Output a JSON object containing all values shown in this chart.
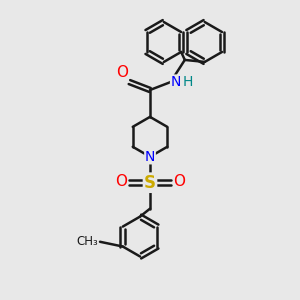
{
  "background_color": "#e8e8e8",
  "bond_color": "#1a1a1a",
  "bond_width": 1.8,
  "figsize": [
    3.0,
    3.0
  ],
  "dpi": 100,
  "xlim": [
    -2.2,
    2.2
  ],
  "ylim": [
    -3.5,
    3.2
  ]
}
